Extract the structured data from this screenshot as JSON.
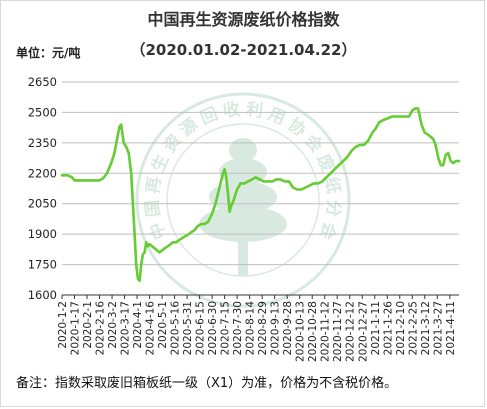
{
  "header": {
    "title": "中国再生资源废纸价格指数",
    "date_range": "（2020.01.02-2021.04.22）",
    "unit": "单位：元/吨"
  },
  "footer": {
    "note": "备注：指数采取废旧箱板纸一级（X1）为准，价格为不含税价格。"
  },
  "watermark": {
    "text": "中国再生资源回收利用协会废纸分会",
    "logo": "tree-logo"
  },
  "colors": {
    "line": "#66cc33",
    "grid": "#bfbfbf",
    "axis": "#333333",
    "watermark": "#2e8b57"
  },
  "chart_data": {
    "type": "line",
    "title": "中国再生资源废纸价格指数",
    "ylabel": "单位：元/吨",
    "ylim": [
      1600,
      2650
    ],
    "yticks": [
      1600,
      1750,
      1900,
      2050,
      2200,
      2350,
      2500,
      2650
    ],
    "grid": "horizontal",
    "xlim": [
      "2020-01-02",
      "2021-04-22"
    ],
    "xtick_labels": [
      "2020-1-2",
      "2020-1-17",
      "2020-2-1",
      "2020-2-16",
      "2020-3-2",
      "2020-3-17",
      "2020-4-1",
      "2020-4-16",
      "2020-5-1",
      "2020-5-16",
      "2020-5-31",
      "2020-6-15",
      "2020-6-30",
      "2020-7-15",
      "2020-7-30",
      "2020-8-14",
      "2020-8-29",
      "2020-9-13",
      "2020-9-28",
      "2020-10-13",
      "2020-10-28",
      "2020-11-12",
      "2020-11-27",
      "2020-12-12",
      "2020-12-27",
      "2021-1-11",
      "2021-1-26",
      "2021-2-10",
      "2021-2-25",
      "2021-3-12",
      "2021-3-27",
      "2021-4-11"
    ],
    "xtick_dates": [
      "2020-01-02",
      "2020-01-17",
      "2020-02-01",
      "2020-02-16",
      "2020-03-02",
      "2020-03-17",
      "2020-04-01",
      "2020-04-16",
      "2020-05-01",
      "2020-05-16",
      "2020-05-31",
      "2020-06-15",
      "2020-06-30",
      "2020-07-15",
      "2020-07-30",
      "2020-08-14",
      "2020-08-29",
      "2020-09-13",
      "2020-09-28",
      "2020-10-13",
      "2020-10-28",
      "2020-11-12",
      "2020-11-27",
      "2020-12-12",
      "2020-12-27",
      "2021-01-11",
      "2021-01-26",
      "2021-02-10",
      "2021-02-25",
      "2021-03-12",
      "2021-03-27",
      "2021-04-11"
    ],
    "series": [
      {
        "x": [
          "2020-01-02",
          "2020-01-09",
          "2020-01-14",
          "2020-01-17",
          "2020-02-01",
          "2020-02-10",
          "2020-02-16",
          "2020-02-20",
          "2020-02-25",
          "2020-03-01",
          "2020-03-05",
          "2020-03-09",
          "2020-03-11",
          "2020-03-13",
          "2020-03-16",
          "2020-03-19",
          "2020-03-22",
          "2020-03-25",
          "2020-03-27",
          "2020-03-29",
          "2020-03-31",
          "2020-04-02",
          "2020-04-04",
          "2020-04-06",
          "2020-04-08",
          "2020-04-10",
          "2020-04-12",
          "2020-04-14",
          "2020-04-16",
          "2020-04-19",
          "2020-04-22",
          "2020-04-25",
          "2020-04-28",
          "2020-05-01",
          "2020-05-04",
          "2020-05-08",
          "2020-05-11",
          "2020-05-14",
          "2020-05-18",
          "2020-05-21",
          "2020-05-25",
          "2020-05-29",
          "2020-06-02",
          "2020-06-05",
          "2020-06-09",
          "2020-06-13",
          "2020-06-17",
          "2020-06-21",
          "2020-06-25",
          "2020-06-30",
          "2020-07-04",
          "2020-07-07",
          "2020-07-10",
          "2020-07-13",
          "2020-07-15",
          "2020-07-17",
          "2020-07-19",
          "2020-07-21",
          "2020-07-23",
          "2020-07-26",
          "2020-07-30",
          "2020-08-03",
          "2020-08-08",
          "2020-08-12",
          "2020-08-17",
          "2020-08-21",
          "2020-08-26",
          "2020-08-31",
          "2020-09-05",
          "2020-09-10",
          "2020-09-15",
          "2020-09-20",
          "2020-09-25",
          "2020-09-30",
          "2020-10-05",
          "2020-10-10",
          "2020-10-15",
          "2020-10-20",
          "2020-10-25",
          "2020-10-30",
          "2020-11-04",
          "2020-11-09",
          "2020-11-14",
          "2020-11-19",
          "2020-11-24",
          "2020-11-29",
          "2020-12-04",
          "2020-12-09",
          "2020-12-14",
          "2020-12-19",
          "2020-12-24",
          "2020-12-29",
          "2021-01-03",
          "2021-01-08",
          "2021-01-12",
          "2021-01-16",
          "2021-01-20",
          "2021-01-26",
          "2021-02-01",
          "2021-02-06",
          "2021-02-11",
          "2021-02-16",
          "2021-02-21",
          "2021-02-25",
          "2021-03-01",
          "2021-03-04",
          "2021-03-08",
          "2021-03-12",
          "2021-03-16",
          "2021-03-19",
          "2021-03-22",
          "2021-03-25",
          "2021-03-28",
          "2021-03-31",
          "2021-04-03",
          "2021-04-06",
          "2021-04-09",
          "2021-04-12",
          "2021-04-15",
          "2021-04-18",
          "2021-04-22"
        ],
        "values": [
          2190,
          2190,
          2180,
          2165,
          2165,
          2165,
          2165,
          2175,
          2200,
          2250,
          2300,
          2390,
          2430,
          2440,
          2350,
          2330,
          2300,
          2200,
          2050,
          1900,
          1750,
          1680,
          1670,
          1750,
          1800,
          1810,
          1860,
          1840,
          1850,
          1840,
          1830,
          1820,
          1810,
          1820,
          1830,
          1840,
          1850,
          1860,
          1860,
          1870,
          1880,
          1890,
          1900,
          1910,
          1920,
          1940,
          1950,
          1950,
          1960,
          2000,
          2050,
          2100,
          2150,
          2200,
          2220,
          2180,
          2100,
          2010,
          2040,
          2070,
          2120,
          2150,
          2150,
          2160,
          2170,
          2180,
          2170,
          2160,
          2160,
          2160,
          2170,
          2170,
          2160,
          2160,
          2130,
          2120,
          2120,
          2130,
          2140,
          2150,
          2150,
          2160,
          2180,
          2200,
          2220,
          2240,
          2260,
          2280,
          2310,
          2330,
          2340,
          2340,
          2360,
          2400,
          2420,
          2450,
          2460,
          2470,
          2480,
          2480,
          2480,
          2480,
          2480,
          2510,
          2520,
          2520,
          2440,
          2400,
          2390,
          2380,
          2370,
          2340,
          2280,
          2240,
          2240,
          2290,
          2300,
          2260,
          2250,
          2260,
          2260
        ]
      }
    ]
  }
}
